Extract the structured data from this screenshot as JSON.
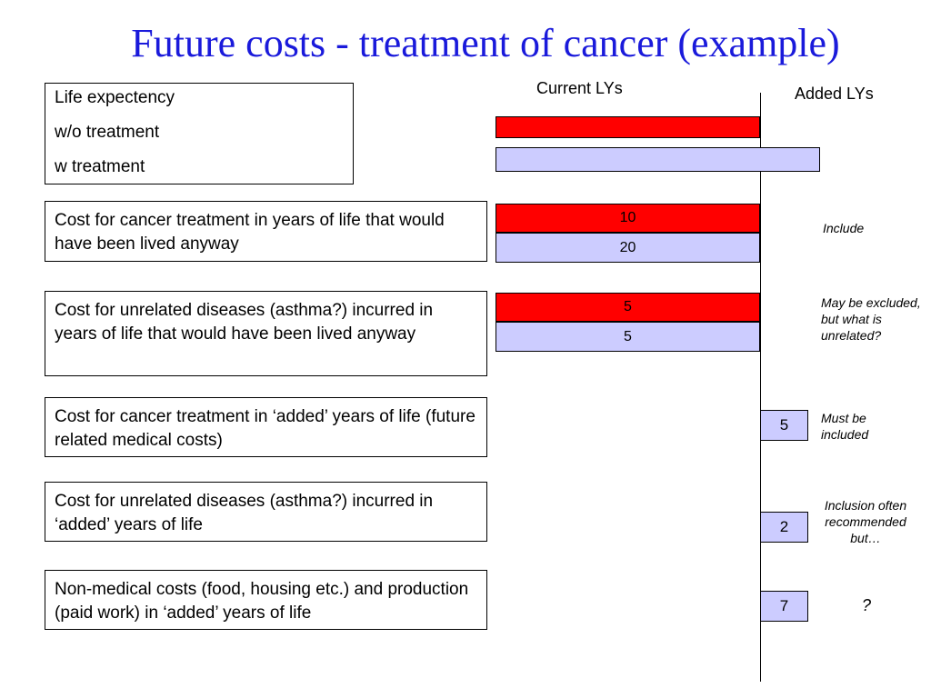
{
  "title": "Future costs - treatment of cancer (example)",
  "headers": {
    "current": "Current LYs",
    "added": "Added LYs"
  },
  "life_box": {
    "line1": "Life expectency",
    "line2": "w/o treatment",
    "line3": "w treatment"
  },
  "rows": [
    {
      "label": "Cost for cancer treatment in years of life that would have been lived anyway",
      "current_red": "10",
      "current_lav": "20",
      "note": "Include"
    },
    {
      "label": "Cost for unrelated diseases (asthma?) incurred in years of life that would have been lived anyway",
      "current_red": "5",
      "current_lav": "5",
      "note": "May be excluded, but what is unrelated?"
    },
    {
      "label": "Cost for cancer treatment in ‘added’ years of life (future related medical costs)",
      "added": "5",
      "note": "Must be included"
    },
    {
      "label": "Cost for unrelated diseases (asthma?) incurred in ‘added’ years of life",
      "added": "2",
      "note": "Inclusion often recommended but…"
    },
    {
      "label": "Non-medical costs (food, housing etc.) and production (paid work) in ‘added’ years of life",
      "added": "7",
      "note": "?"
    }
  ],
  "colors": {
    "title": "#1a1adb",
    "without_treatment": "#ff0000",
    "with_treatment": "#ccccff"
  }
}
